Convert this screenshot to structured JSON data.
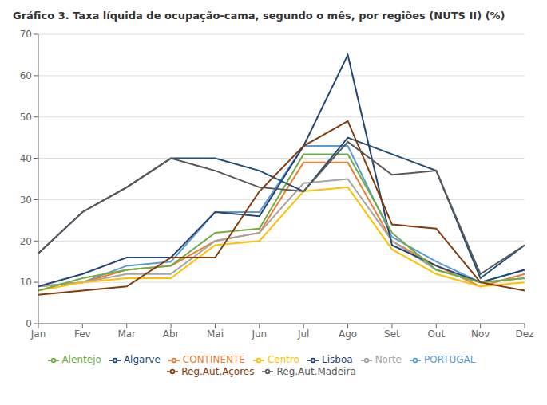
{
  "chart_data": {
    "type": "line",
    "title": "Gráfico 3. Taxa líquida de ocupação-cama, segundo o mês, por regiões (NUTS II) (%)",
    "categories": [
      "Jan",
      "Fev",
      "Mar",
      "Abr",
      "Mai",
      "Jun",
      "Jul",
      "Ago",
      "Set",
      "Out",
      "Nov",
      "Dez"
    ],
    "series": [
      {
        "name": "PORTUGAL",
        "color": "#5B9BD5",
        "values": [
          9,
          10,
          14,
          15,
          27,
          27,
          43,
          43,
          21,
          15,
          10,
          13
        ]
      },
      {
        "name": "CONTINENTE",
        "color": "#ED7D31",
        "values": [
          9,
          10,
          13,
          14,
          20,
          22,
          39,
          39,
          20,
          14,
          9,
          12
        ]
      },
      {
        "name": "Norte",
        "color": "#A5A5A5",
        "values": [
          9,
          10,
          12,
          12,
          20,
          22,
          34,
          35,
          20,
          13,
          10,
          11
        ]
      },
      {
        "name": "Centro",
        "color": "#FFC000",
        "values": [
          8,
          10,
          11,
          11,
          19,
          20,
          32,
          33,
          18,
          12,
          9,
          10
        ]
      },
      {
        "name": "Lisboa",
        "color": "#264478",
        "values": [
          9,
          12,
          16,
          16,
          27,
          26,
          43,
          65,
          19,
          14,
          10,
          13
        ]
      },
      {
        "name": "Alentejo",
        "color": "#70AD47",
        "values": [
          8,
          11,
          13,
          14,
          22,
          23,
          41,
          41,
          22,
          13,
          10,
          11
        ]
      },
      {
        "name": "Algarve",
        "color": "#1F4E79",
        "values": [
          17,
          27,
          33,
          40,
          40,
          37,
          32,
          45,
          41,
          37,
          11,
          19
        ]
      },
      {
        "name": "Reg.Aut.Açores",
        "color": "#843C0C",
        "values": [
          7,
          8,
          9,
          16,
          16,
          32,
          43,
          49,
          24,
          23,
          10,
          8
        ]
      },
      {
        "name": "Reg.Aut.Madeira",
        "color": "#595959",
        "values": [
          17,
          27,
          33,
          40,
          37,
          33,
          32,
          44,
          36,
          37,
          12,
          19
        ]
      }
    ],
    "ylim": [
      0,
      70
    ],
    "yticks": [
      0,
      10,
      20,
      30,
      40,
      50,
      60,
      70
    ],
    "grid": true,
    "legend": "bottom"
  }
}
